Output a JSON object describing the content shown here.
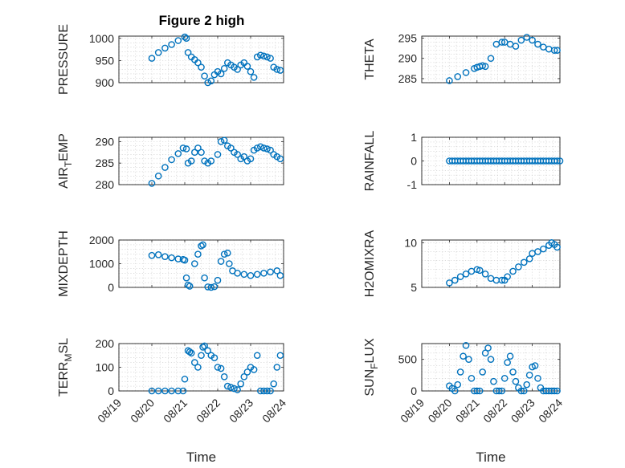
{
  "figure": {
    "title": "Figure 2 high",
    "colors": {
      "marker": "#0072BD",
      "axis": "#262626",
      "grid": "#c8c8c8"
    }
  },
  "chart_data": [
    {
      "type": "scatter",
      "ylabel": "PRESSURE",
      "ylim": [
        900,
        1005
      ],
      "yticks": [
        900,
        950,
        1000
      ],
      "xlim": [
        "08/19",
        "08/24"
      ],
      "xtick_labels": [
        "08/19",
        "08/20",
        "08/21",
        "08/22",
        "08/23",
        "08/24"
      ],
      "grid": true,
      "x": [
        20.0,
        20.2,
        20.4,
        20.6,
        20.8,
        21.0,
        21.05,
        21.1,
        21.2,
        21.3,
        21.4,
        21.5,
        21.6,
        21.7,
        21.8,
        21.9,
        22.0,
        22.1,
        22.2,
        22.3,
        22.4,
        22.5,
        22.6,
        22.7,
        22.8,
        22.9,
        23.0,
        23.1,
        23.2,
        23.3,
        23.4,
        23.5,
        23.6,
        23.7,
        23.8,
        23.9
      ],
      "y": [
        955,
        968,
        978,
        986,
        995,
        1003,
        1000,
        968,
        958,
        952,
        945,
        935,
        915,
        900,
        904,
        918,
        925,
        920,
        932,
        945,
        940,
        935,
        930,
        940,
        945,
        937,
        925,
        912,
        958,
        962,
        960,
        958,
        955,
        935,
        930,
        928
      ]
    },
    {
      "type": "scatter",
      "ylabel": "THETA",
      "ylim": [
        284,
        295.5
      ],
      "yticks": [
        285,
        290,
        295
      ],
      "xlim": [
        "08/19",
        "08/24"
      ],
      "xtick_labels": [
        "08/19",
        "08/20",
        "08/21",
        "08/22",
        "08/23",
        "08/24"
      ],
      "grid": true,
      "x": [
        20.0,
        20.3,
        20.6,
        20.9,
        21.0,
        21.1,
        21.2,
        21.3,
        21.5,
        21.7,
        21.9,
        22.0,
        22.2,
        22.4,
        22.6,
        22.8,
        23.0,
        23.2,
        23.4,
        23.6,
        23.8,
        23.9
      ],
      "y": [
        284.5,
        285.5,
        286.5,
        287.5,
        287.8,
        288.0,
        288.2,
        288.0,
        290.0,
        293.5,
        294.0,
        294.0,
        293.5,
        293.0,
        294.5,
        295.2,
        294.5,
        293.5,
        292.8,
        292.3,
        292.0,
        292.0
      ]
    },
    {
      "type": "scatter",
      "ylabel": "AIR_TEMP",
      "ylim": [
        280,
        291
      ],
      "yticks": [
        280,
        285,
        290
      ],
      "xlim": [
        "08/19",
        "08/24"
      ],
      "xtick_labels": [
        "08/19",
        "08/20",
        "08/21",
        "08/22",
        "08/23",
        "08/24"
      ],
      "grid": true,
      "x": [
        20.0,
        20.2,
        20.4,
        20.6,
        20.8,
        20.95,
        21.05,
        21.1,
        21.2,
        21.3,
        21.4,
        21.5,
        21.6,
        21.7,
        21.8,
        22.0,
        22.1,
        22.2,
        22.3,
        22.4,
        22.5,
        22.6,
        22.7,
        22.8,
        22.9,
        23.0,
        23.1,
        23.2,
        23.3,
        23.4,
        23.5,
        23.6,
        23.7,
        23.8,
        23.9
      ],
      "y": [
        280.3,
        282.0,
        284.0,
        285.8,
        287.2,
        288.5,
        288.3,
        285.0,
        285.5,
        287.5,
        288.5,
        287.5,
        285.5,
        285.0,
        285.5,
        287.0,
        290.0,
        290.3,
        289.0,
        288.5,
        287.5,
        287.0,
        286.0,
        286.5,
        285.5,
        286.0,
        288.0,
        288.5,
        288.8,
        288.5,
        288.3,
        288.0,
        287.0,
        286.5,
        286.0
      ]
    },
    {
      "type": "scatter",
      "ylabel": "RAINFALL",
      "ylim": [
        -1,
        1
      ],
      "yticks": [
        -1,
        0,
        1
      ],
      "xlim": [
        "08/19",
        "08/24"
      ],
      "xtick_labels": [
        "08/19",
        "08/20",
        "08/21",
        "08/22",
        "08/23",
        "08/24"
      ],
      "grid": true,
      "x": [
        20.0,
        20.1,
        20.2,
        20.3,
        20.4,
        20.5,
        20.6,
        20.7,
        20.8,
        20.9,
        21.0,
        21.1,
        21.2,
        21.3,
        21.4,
        21.5,
        21.6,
        21.7,
        21.8,
        21.9,
        22.0,
        22.1,
        22.2,
        22.3,
        22.4,
        22.5,
        22.6,
        22.7,
        22.8,
        22.9,
        23.0,
        23.1,
        23.2,
        23.3,
        23.4,
        23.5,
        23.6,
        23.7,
        23.8,
        23.9,
        24.0
      ],
      "y": [
        0,
        0,
        0,
        0,
        0,
        0,
        0,
        0,
        0,
        0,
        0,
        0,
        0,
        0,
        0,
        0,
        0,
        0,
        0,
        0,
        0,
        0,
        0,
        0,
        0,
        0,
        0,
        0,
        0,
        0,
        0,
        0,
        0,
        0,
        0,
        0,
        0,
        0,
        0,
        0,
        0
      ]
    },
    {
      "type": "scatter",
      "ylabel": "MIXDEPTH",
      "ylim": [
        0,
        2000
      ],
      "yticks": [
        0,
        1000,
        2000
      ],
      "xlim": [
        "08/19",
        "08/24"
      ],
      "xtick_labels": [
        "08/19",
        "08/20",
        "08/21",
        "08/22",
        "08/23",
        "08/24"
      ],
      "grid": true,
      "x": [
        20.0,
        20.2,
        20.4,
        20.6,
        20.8,
        20.95,
        21.0,
        21.05,
        21.1,
        21.15,
        21.3,
        21.4,
        21.5,
        21.55,
        21.6,
        21.7,
        21.8,
        21.9,
        22.0,
        22.1,
        22.2,
        22.3,
        22.35,
        22.45,
        22.6,
        22.8,
        23.0,
        23.2,
        23.4,
        23.6,
        23.8,
        23.9
      ],
      "y": [
        1350,
        1380,
        1300,
        1250,
        1200,
        1180,
        1150,
        400,
        100,
        50,
        1000,
        1400,
        1750,
        1800,
        400,
        20,
        0,
        30,
        300,
        1100,
        1400,
        1450,
        1000,
        700,
        600,
        550,
        500,
        550,
        600,
        650,
        700,
        500
      ]
    },
    {
      "type": "scatter",
      "ylabel": "H2OMIXRA",
      "ylim": [
        5,
        10.3
      ],
      "yticks": [
        5,
        10
      ],
      "xlim": [
        "08/19",
        "08/24"
      ],
      "xtick_labels": [
        "08/19",
        "08/20",
        "08/21",
        "08/22",
        "08/23",
        "08/24"
      ],
      "grid": true,
      "x": [
        20.0,
        20.2,
        20.4,
        20.6,
        20.8,
        21.0,
        21.1,
        21.3,
        21.5,
        21.7,
        21.9,
        22.0,
        22.1,
        22.3,
        22.5,
        22.7,
        22.9,
        23.0,
        23.2,
        23.4,
        23.6,
        23.7,
        23.8,
        23.9
      ],
      "y": [
        5.5,
        5.8,
        6.2,
        6.5,
        6.8,
        7.0,
        6.9,
        6.5,
        6.0,
        5.8,
        5.8,
        5.8,
        6.2,
        6.8,
        7.3,
        7.8,
        8.2,
        8.8,
        9.0,
        9.3,
        9.7,
        10.0,
        9.8,
        9.5
      ]
    },
    {
      "type": "scatter",
      "ylabel": "TERR_MSL",
      "ylim": [
        0,
        200
      ],
      "yticks": [
        0,
        100,
        200
      ],
      "xlim": [
        "08/19",
        "08/24"
      ],
      "xtick_labels": [
        "08/19",
        "08/20",
        "08/21",
        "08/22",
        "08/23",
        "08/24"
      ],
      "grid": true,
      "x": [
        20.0,
        20.2,
        20.4,
        20.6,
        20.8,
        20.95,
        21.0,
        21.1,
        21.15,
        21.2,
        21.3,
        21.4,
        21.5,
        21.55,
        21.6,
        21.7,
        21.8,
        21.9,
        22.0,
        22.1,
        22.2,
        22.3,
        22.4,
        22.5,
        22.6,
        22.7,
        22.8,
        22.9,
        23.0,
        23.1,
        23.2,
        23.3,
        23.4,
        23.5,
        23.6,
        23.7,
        23.8,
        23.9
      ],
      "y": [
        0,
        0,
        0,
        0,
        0,
        0,
        50,
        170,
        165,
        160,
        120,
        100,
        150,
        185,
        190,
        170,
        150,
        140,
        100,
        95,
        60,
        20,
        15,
        10,
        5,
        30,
        60,
        80,
        100,
        90,
        150,
        0,
        0,
        0,
        0,
        30,
        100,
        150
      ]
    },
    {
      "type": "scatter",
      "ylabel": "SUN_FLUX",
      "ylim": [
        0,
        750
      ],
      "yticks": [
        0,
        500
      ],
      "xlim": [
        "08/19",
        "08/24"
      ],
      "xtick_labels": [
        "08/19",
        "08/20",
        "08/21",
        "08/22",
        "08/23",
        "08/24"
      ],
      "grid": true,
      "x": [
        20.0,
        20.1,
        20.2,
        20.3,
        20.4,
        20.5,
        20.6,
        20.7,
        20.8,
        20.9,
        21.0,
        21.1,
        21.2,
        21.3,
        21.4,
        21.5,
        21.6,
        21.7,
        21.8,
        21.9,
        22.0,
        22.1,
        22.2,
        22.3,
        22.4,
        22.5,
        22.6,
        22.7,
        22.8,
        22.9,
        23.0,
        23.1,
        23.2,
        23.3,
        23.4,
        23.5,
        23.6,
        23.7,
        23.8,
        23.9
      ],
      "y": [
        80,
        40,
        0,
        100,
        300,
        550,
        720,
        500,
        200,
        0,
        0,
        0,
        300,
        600,
        680,
        500,
        150,
        0,
        0,
        0,
        200,
        450,
        550,
        300,
        150,
        50,
        0,
        0,
        100,
        250,
        380,
        400,
        200,
        50,
        0,
        0,
        0,
        0,
        0,
        0
      ]
    }
  ],
  "xlabel": "Time"
}
